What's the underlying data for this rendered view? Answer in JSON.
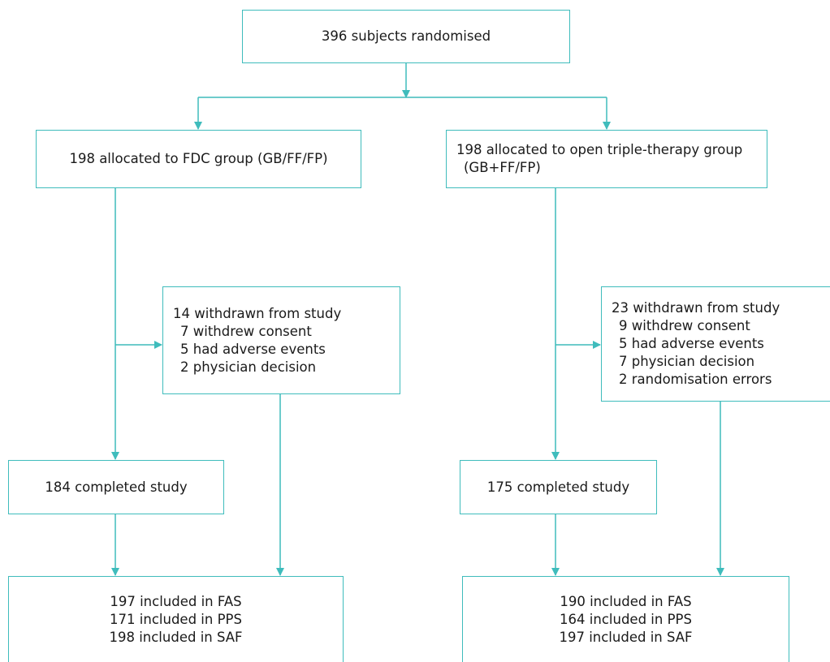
{
  "colors": {
    "border": "#3fbcbc",
    "connector": "#3fbcbc",
    "text": "#1a1a1a",
    "background": "#ffffff"
  },
  "randomised": "396 subjects randomised",
  "arms": [
    {
      "allocation": [
        "198 allocated to FDC group (GB/FF/FP)"
      ],
      "withdrawn": {
        "title": "14 withdrawn from study",
        "reasons": [
          "7 withdrew consent",
          "5 had adverse events",
          "2 physician decision"
        ]
      },
      "completed": "184 completed study",
      "analysis": [
        "197 included in FAS",
        "171 included in PPS",
        "198 included in SAF"
      ]
    },
    {
      "allocation": [
        "198 allocated to open triple-therapy group",
        "(GB+FF/FP)"
      ],
      "withdrawn": {
        "title": "23 withdrawn from study",
        "reasons": [
          "9 withdrew consent",
          "5 had adverse events",
          "7 physician decision",
          "2 randomisation errors"
        ]
      },
      "completed": "175 completed study",
      "analysis": [
        "190 included in FAS",
        "164 included in PPS",
        "197 included in SAF"
      ]
    }
  ]
}
